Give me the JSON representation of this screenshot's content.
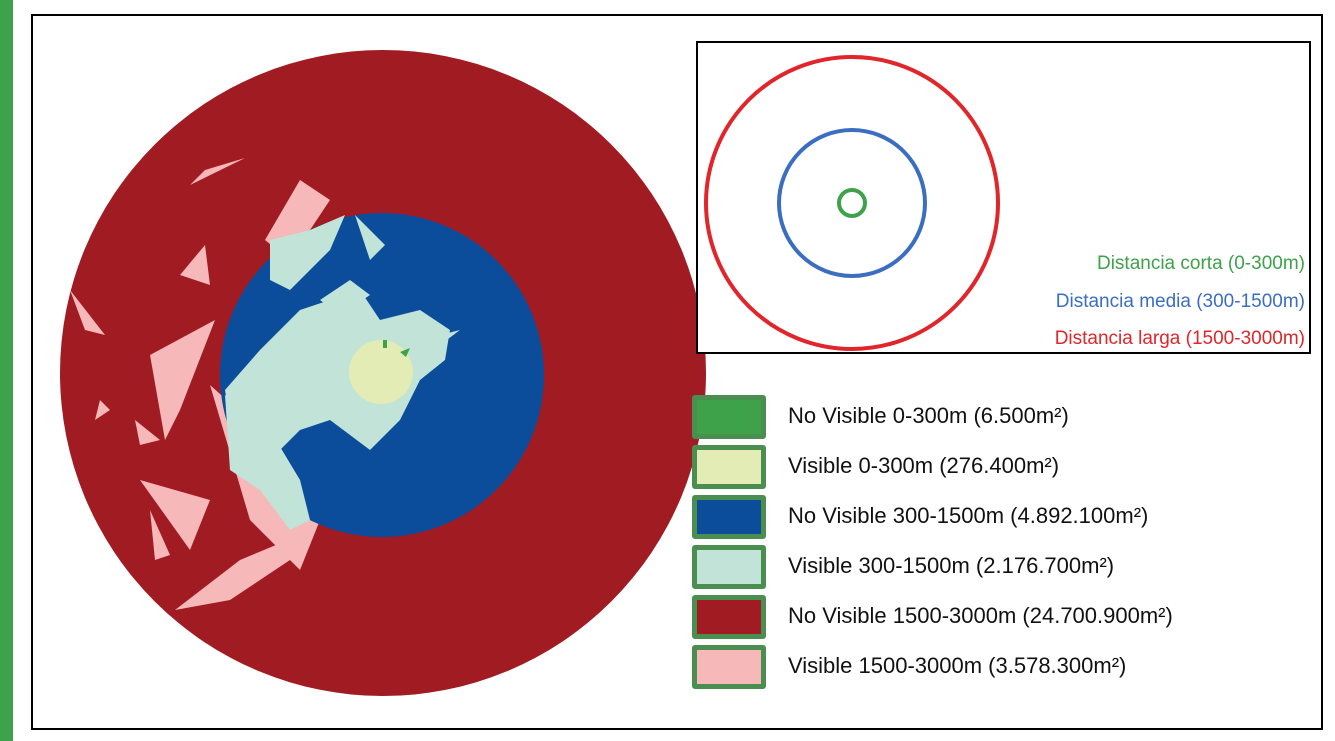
{
  "colors": {
    "no_visible_short": "#3da24a",
    "visible_short": "#e2ecb4",
    "no_visible_medium": "#0b4d9a",
    "visible_medium": "#c1e3d8",
    "no_visible_long": "#a11b22",
    "visible_long": "#f6b8b8",
    "swatch_border": "#4a8f4f",
    "inset_short": "#3da24a",
    "inset_medium": "#3b6ec1",
    "inset_long": "#e0262b"
  },
  "inset": {
    "labels": [
      {
        "text": "Distancia corta (0-300m)",
        "color": "#3da24a"
      },
      {
        "text": "Distancia media (300-1500m)",
        "color": "#3b6ec1"
      },
      {
        "text": "Distancia larga (1500-3000m)",
        "color": "#e0262b"
      }
    ]
  },
  "legend": {
    "items": [
      {
        "label": "No Visible 0-300m (6.500m²)",
        "color": "#3da24a"
      },
      {
        "label": "Visible 0-300m (276.400m²)",
        "color": "#e2ecb4"
      },
      {
        "label": "No Visible 300-1500m (4.892.100m²)",
        "color": "#0b4d9a"
      },
      {
        "label": "Visible 300-1500m (2.176.700m²)",
        "color": "#c1e3d8"
      },
      {
        "label": "No Visible 1500-3000m (24.700.900m²)",
        "color": "#a11b22"
      },
      {
        "label": "Visible 1500-3000m (3.578.300m²)",
        "color": "#f6b8b8"
      }
    ]
  }
}
